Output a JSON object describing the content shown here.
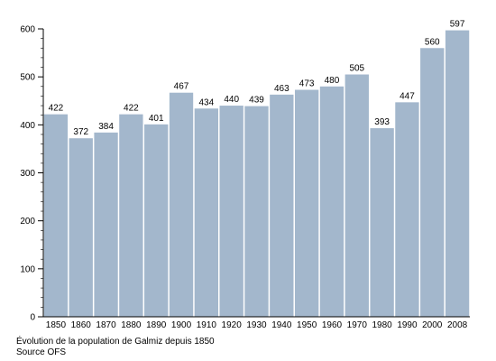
{
  "chart_data": {
    "type": "bar",
    "categories": [
      "1850",
      "1860",
      "1870",
      "1880",
      "1890",
      "1900",
      "1910",
      "1920",
      "1930",
      "1940",
      "1950",
      "1960",
      "1970",
      "1980",
      "1990",
      "2000",
      "2008"
    ],
    "values": [
      422,
      372,
      384,
      422,
      401,
      467,
      434,
      440,
      439,
      463,
      473,
      480,
      505,
      393,
      447,
      560,
      597
    ],
    "value_labels": [
      "422",
      "372",
      "384",
      "422",
      "401",
      "467",
      "434",
      "440",
      "439",
      "463",
      "473",
      "480",
      "505",
      "393",
      "447",
      "560",
      "597"
    ],
    "y_ticks": [
      "0",
      "100",
      "200",
      "300",
      "400",
      "500",
      "600"
    ],
    "ylim": [
      0,
      600
    ],
    "grid": false,
    "bar_color": "#a3b7cc",
    "title": "",
    "xlabel": "",
    "ylabel": ""
  },
  "caption": {
    "line1": "Évolution de la population de Galmiz depuis 1850",
    "line2": "Source OFS"
  }
}
